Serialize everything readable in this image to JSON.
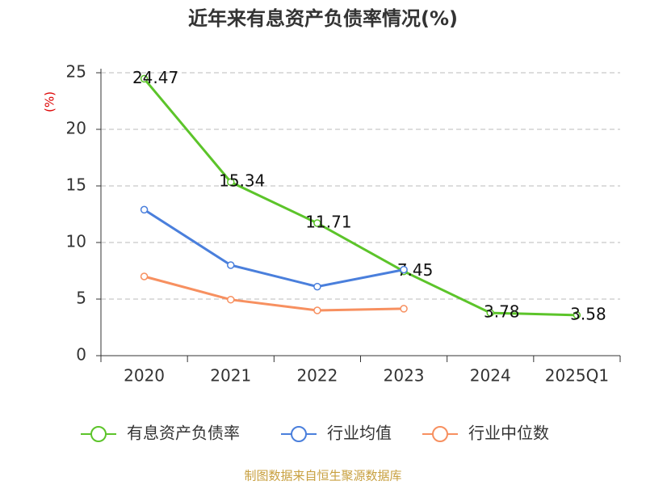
{
  "chart_data": {
    "type": "line",
    "title": "近年来有息资产负债率情况(%)",
    "y_label": "(%)",
    "source": "制图数据来自恒生聚源数据库",
    "categories": [
      "2020",
      "2021",
      "2022",
      "2023",
      "2024",
      "2025Q1"
    ],
    "series": [
      {
        "name": "有息资产负债率",
        "color": "#5cc42a",
        "values": [
          24.47,
          15.34,
          11.71,
          7.45,
          3.78,
          3.58
        ],
        "show_labels": true
      },
      {
        "name": "行业均值",
        "color": "#4a7fdc",
        "values": [
          12.9,
          8.0,
          6.1,
          7.6,
          null,
          null
        ]
      },
      {
        "name": "行业中位数",
        "color": "#f79060",
        "values": [
          7.0,
          4.95,
          4.0,
          4.15,
          null,
          null
        ]
      }
    ],
    "ylim": [
      0,
      25
    ],
    "yticks": [
      0,
      5,
      10,
      15,
      20,
      25
    ],
    "grid": true
  }
}
